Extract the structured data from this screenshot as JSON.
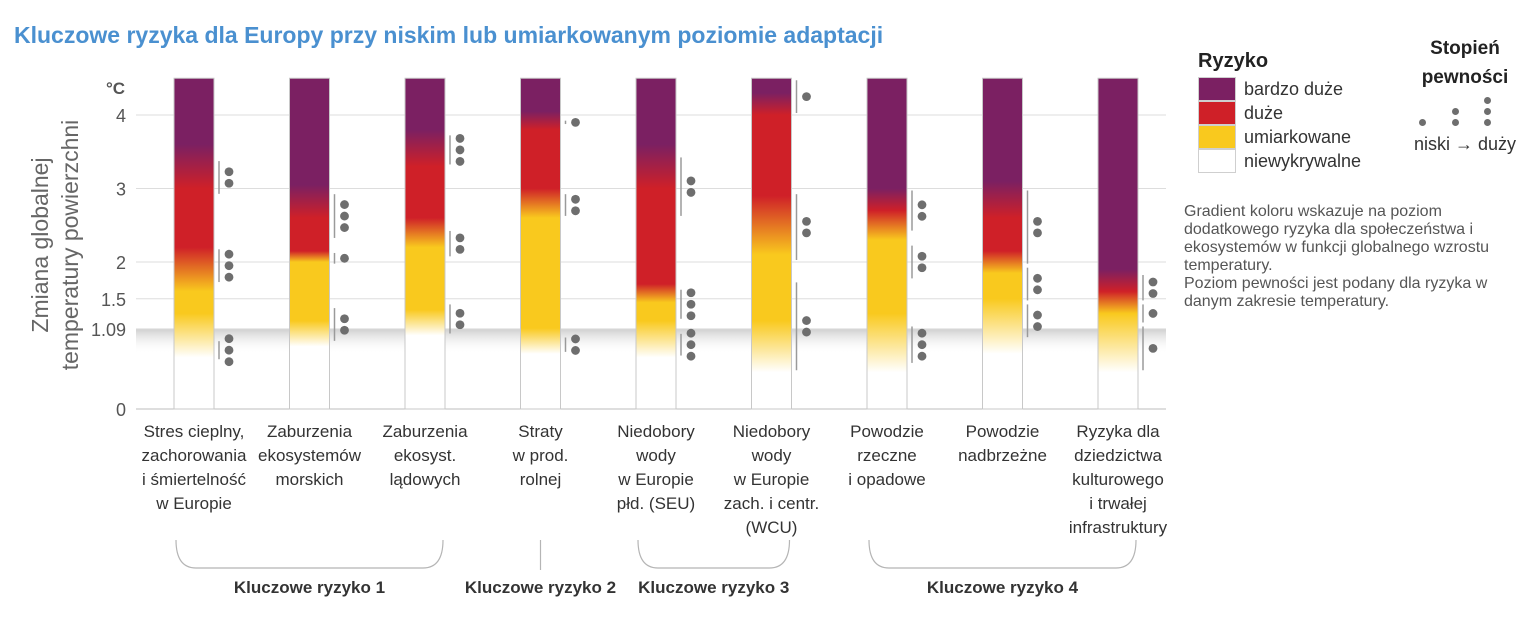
{
  "title": "Kluczowe ryzyka dla Europy przy niskim lub umiarkowanym poziomie adaptacji",
  "legend": {
    "title": "Ryzyko",
    "items": [
      {
        "label": "bardzo duże",
        "color": "#7b2062"
      },
      {
        "label": "duże",
        "color": "#cf2028"
      },
      {
        "label": "umiarkowane",
        "color": "#f9c91e"
      },
      {
        "label": "niewykrywalne",
        "color": "#ffffff"
      }
    ]
  },
  "confidence": {
    "title_line1": "Stopień",
    "title_line2": "pewności",
    "scale_label": "niski → duży"
  },
  "note": {
    "line1": "Gradient koloru wskazuje na poziom dodatkowego  ryzyka dla społeczeństwa i ekosystemów w funkcji globalnego wzrostu  temperatury.",
    "line2": "Poziom pewności jest podany dla ryzyka w danym zakresie temperatury."
  },
  "colors": {
    "very_high": "#7b2062",
    "high": "#cf2028",
    "moderate": "#f9c91e",
    "undetectable": "#ffffff",
    "dot": "#6e6e6e",
    "bracket": "#9a9a9a",
    "band": "#cfcfcf"
  },
  "chart_data": {
    "type": "bar",
    "ylabel_line1": "Zmiana globalnej",
    "ylabel_line2": "temperatury powierzchni",
    "unit": "°C",
    "ylim": [
      0,
      4.5
    ],
    "yticks": [
      0,
      1.09,
      1.5,
      2,
      3,
      4
    ],
    "ytick_labels": [
      "0",
      "1.09",
      "1.5",
      "2",
      "3",
      "4"
    ],
    "observed_band": [
      0.75,
      1.09
    ],
    "bars": [
      {
        "label_lines": [
          "Stres cieplny,",
          "zachorowania",
          "i śmiertelność",
          "w Europie"
        ],
        "stops": [
          [
            0.7,
            "#ffffff"
          ],
          [
            1.3,
            "#f9c91e"
          ],
          [
            1.6,
            "#f9c91e"
          ],
          [
            2.2,
            "#cf2028"
          ],
          [
            3.0,
            "#cf2028"
          ],
          [
            3.6,
            "#7b2062"
          ]
        ],
        "confidence": [
          {
            "range": [
              0.65,
              0.95
            ],
            "level": 3
          },
          {
            "range": [
              1.7,
              2.2
            ],
            "level": 3
          },
          {
            "range": [
              2.9,
              3.4
            ],
            "level": 2
          }
        ]
      },
      {
        "label_lines": [
          "Zaburzenia",
          "ekosystemów",
          "morskich"
        ],
        "stops": [
          [
            0.85,
            "#ffffff"
          ],
          [
            1.2,
            "#f9c91e"
          ],
          [
            2.0,
            "#f9c91e"
          ],
          [
            2.15,
            "#cf2028"
          ],
          [
            2.6,
            "#cf2028"
          ],
          [
            3.05,
            "#7b2062"
          ]
        ],
        "confidence": [
          {
            "range": [
              0.9,
              1.4
            ],
            "level": 2
          },
          {
            "range": [
              1.95,
              2.15
            ],
            "level": 1
          },
          {
            "range": [
              2.3,
              2.95
            ],
            "level": 3
          }
        ]
      },
      {
        "label_lines": [
          "Zaburzenia",
          "ekosyst.",
          "lądowych"
        ],
        "stops": [
          [
            1.0,
            "#ffffff"
          ],
          [
            1.35,
            "#f9c91e"
          ],
          [
            2.2,
            "#f9c91e"
          ],
          [
            2.6,
            "#cf2028"
          ],
          [
            3.3,
            "#cf2028"
          ],
          [
            3.8,
            "#7b2062"
          ]
        ],
        "confidence": [
          {
            "range": [
              1.0,
              1.45
            ],
            "level": 2
          },
          {
            "range": [
              2.05,
              2.45
            ],
            "level": 2
          },
          {
            "range": [
              3.3,
              3.75
            ],
            "level": 3
          }
        ]
      },
      {
        "label_lines": [
          "Straty",
          "w prod.",
          "rolnej"
        ],
        "stops": [
          [
            0.75,
            "#ffffff"
          ],
          [
            1.1,
            "#f9c91e"
          ],
          [
            2.6,
            "#f9c91e"
          ],
          [
            3.0,
            "#cf2028"
          ],
          [
            3.8,
            "#cf2028"
          ],
          [
            4.05,
            "#7b2062"
          ]
        ],
        "confidence": [
          {
            "range": [
              0.75,
              1.0
            ],
            "level": 2
          },
          {
            "range": [
              2.6,
              2.95
            ],
            "level": 2
          },
          {
            "range": [
              3.85,
              3.95
            ],
            "level": 1
          }
        ]
      },
      {
        "label_lines": [
          "Niedobory",
          "wody",
          "w Europie",
          "płd. (SEU)"
        ],
        "stops": [
          [
            0.7,
            "#ffffff"
          ],
          [
            1.2,
            "#f9c91e"
          ],
          [
            1.45,
            "#f9c91e"
          ],
          [
            1.7,
            "#cf2028"
          ],
          [
            3.0,
            "#cf2028"
          ],
          [
            3.6,
            "#7b2062"
          ]
        ],
        "confidence": [
          {
            "range": [
              0.7,
              1.05
            ],
            "level": 3
          },
          {
            "range": [
              1.2,
              1.65
            ],
            "level": 3
          },
          {
            "range": [
              2.6,
              3.45
            ],
            "level": 2
          }
        ]
      },
      {
        "label_lines": [
          "Niedobory",
          "wody",
          "w Europie",
          "zach. i centr.",
          "(WCU)"
        ],
        "stops": [
          [
            0.5,
            "#ffffff"
          ],
          [
            1.2,
            "#f9c91e"
          ],
          [
            2.1,
            "#f9c91e"
          ],
          [
            2.9,
            "#cf2028"
          ],
          [
            4.0,
            "#cf2028"
          ],
          [
            4.3,
            "#7b2062"
          ]
        ],
        "confidence": [
          {
            "range": [
              0.5,
              1.75
            ],
            "level": 2
          },
          {
            "range": [
              2.0,
              2.95
            ],
            "level": 2
          },
          {
            "range": [
              4.0,
              4.5
            ],
            "level": 1
          }
        ]
      },
      {
        "label_lines": [
          "Powodzie",
          "rzeczne",
          "i opadowe"
        ],
        "stops": [
          [
            0.5,
            "#ffffff"
          ],
          [
            1.3,
            "#f9c91e"
          ],
          [
            2.3,
            "#f9c91e"
          ],
          [
            2.7,
            "#cf2028"
          ],
          [
            3.0,
            "#7b2062"
          ]
        ],
        "confidence": [
          {
            "range": [
              0.6,
              1.15
            ],
            "level": 3
          },
          {
            "range": [
              1.75,
              2.25
            ],
            "level": 2
          },
          {
            "range": [
              2.4,
              3.0
            ],
            "level": 2
          }
        ]
      },
      {
        "label_lines": [
          "Powodzie",
          "nadbrzeżne"
        ],
        "stops": [
          [
            0.75,
            "#ffffff"
          ],
          [
            1.5,
            "#f9c91e"
          ],
          [
            1.85,
            "#f9c91e"
          ],
          [
            2.15,
            "#cf2028"
          ],
          [
            2.6,
            "#cf2028"
          ],
          [
            3.1,
            "#7b2062"
          ]
        ],
        "confidence": [
          {
            "range": [
              0.95,
              1.45
            ],
            "level": 2
          },
          {
            "range": [
              1.45,
              1.95
            ],
            "level": 2
          },
          {
            "range": [
              1.95,
              3.0
            ],
            "level": 2
          }
        ]
      },
      {
        "label_lines": [
          "Ryzyka dla",
          "dziedzictwa",
          "kulturowego",
          "i trwałej",
          "infrastruktury"
        ],
        "stops": [
          [
            0.5,
            "#ffffff"
          ],
          [
            1.3,
            "#f9c91e"
          ],
          [
            1.6,
            "#cf2028"
          ],
          [
            1.9,
            "#7b2062"
          ]
        ],
        "confidence": [
          {
            "range": [
              0.5,
              1.15
            ],
            "level": 1
          },
          {
            "range": [
              1.15,
              1.45
            ],
            "level": 1
          },
          {
            "range": [
              1.45,
              1.85
            ],
            "level": 2
          }
        ]
      }
    ],
    "groups": [
      {
        "label": "Kluczowe ryzyko 1",
        "from": 0,
        "to": 2
      },
      {
        "label": "Kluczowe ryzyko 2",
        "from": 3,
        "to": 3
      },
      {
        "label": "Kluczowe ryzyko 3",
        "from": 4,
        "to": 5
      },
      {
        "label": "Kluczowe ryzyko 4",
        "from": 6,
        "to": 8
      }
    ]
  }
}
